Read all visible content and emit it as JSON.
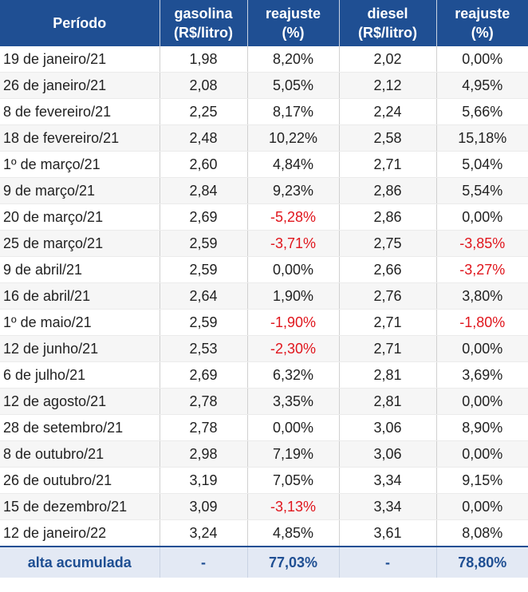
{
  "header": {
    "period": "Período",
    "gasolina": [
      "gasolina",
      "(R$/litro)"
    ],
    "reajuste_gas": [
      "reajuste",
      "(%)"
    ],
    "diesel": [
      "diesel",
      "(R$/litro)"
    ],
    "reajuste_diesel": [
      "reajuste",
      "(%)"
    ]
  },
  "rows": [
    {
      "period": "19 de janeiro/21",
      "gasolina": "1,98",
      "reaj_gas": "8,20%",
      "diesel": "2,02",
      "reaj_diesel": "0,00%"
    },
    {
      "period": "26 de janeiro/21",
      "gasolina": "2,08",
      "reaj_gas": "5,05%",
      "diesel": "2,12",
      "reaj_diesel": "4,95%"
    },
    {
      "period": "8 de fevereiro/21",
      "gasolina": "2,25",
      "reaj_gas": "8,17%",
      "diesel": "2,24",
      "reaj_diesel": "5,66%"
    },
    {
      "period": "18 de fevereiro/21",
      "gasolina": "2,48",
      "reaj_gas": "10,22%",
      "diesel": "2,58",
      "reaj_diesel": "15,18%"
    },
    {
      "period": "1º de março/21",
      "gasolina": "2,60",
      "reaj_gas": "4,84%",
      "diesel": "2,71",
      "reaj_diesel": "5,04%"
    },
    {
      "period": "9 de março/21",
      "gasolina": "2,84",
      "reaj_gas": "9,23%",
      "diesel": "2,86",
      "reaj_diesel": "5,54%"
    },
    {
      "period": "20 de março/21",
      "gasolina": "2,69",
      "reaj_gas": "-5,28%",
      "diesel": "2,86",
      "reaj_diesel": "0,00%"
    },
    {
      "period": "25 de março/21",
      "gasolina": "2,59",
      "reaj_gas": "-3,71%",
      "diesel": "2,75",
      "reaj_diesel": "-3,85%"
    },
    {
      "period": "9 de abril/21",
      "gasolina": "2,59",
      "reaj_gas": "0,00%",
      "diesel": "2,66",
      "reaj_diesel": "-3,27%"
    },
    {
      "period": "16 de abril/21",
      "gasolina": "2,64",
      "reaj_gas": "1,90%",
      "diesel": "2,76",
      "reaj_diesel": "3,80%"
    },
    {
      "period": "1º de maio/21",
      "gasolina": "2,59",
      "reaj_gas": "-1,90%",
      "diesel": "2,71",
      "reaj_diesel": "-1,80%"
    },
    {
      "period": "12 de junho/21",
      "gasolina": "2,53",
      "reaj_gas": "-2,30%",
      "diesel": "2,71",
      "reaj_diesel": "0,00%"
    },
    {
      "period": "6 de julho/21",
      "gasolina": "2,69",
      "reaj_gas": "6,32%",
      "diesel": "2,81",
      "reaj_diesel": "3,69%"
    },
    {
      "period": "12 de agosto/21",
      "gasolina": "2,78",
      "reaj_gas": "3,35%",
      "diesel": "2,81",
      "reaj_diesel": "0,00%"
    },
    {
      "period": "28 de setembro/21",
      "gasolina": "2,78",
      "reaj_gas": "0,00%",
      "diesel": "3,06",
      "reaj_diesel": "8,90%"
    },
    {
      "period": "8 de outubro/21",
      "gasolina": "2,98",
      "reaj_gas": "7,19%",
      "diesel": "3,06",
      "reaj_diesel": "0,00%"
    },
    {
      "period": "26 de outubro/21",
      "gasolina": "3,19",
      "reaj_gas": "7,05%",
      "diesel": "3,34",
      "reaj_diesel": "9,15%"
    },
    {
      "period": "15 de dezembro/21",
      "gasolina": "3,09",
      "reaj_gas": "-3,13%",
      "diesel": "3,34",
      "reaj_diesel": "0,00%"
    },
    {
      "period": "12 de janeiro/22",
      "gasolina": "3,24",
      "reaj_gas": "4,85%",
      "diesel": "3,61",
      "reaj_diesel": "8,08%"
    }
  ],
  "footer": {
    "label": "alta acumulada",
    "gasolina": "-",
    "reaj_gas": "77,03%",
    "diesel": "-",
    "reaj_diesel": "78,80%"
  },
  "colors": {
    "header_bg": "#1f4f93",
    "negative": "#e0161d",
    "footer_bg": "#e3e9f4"
  }
}
